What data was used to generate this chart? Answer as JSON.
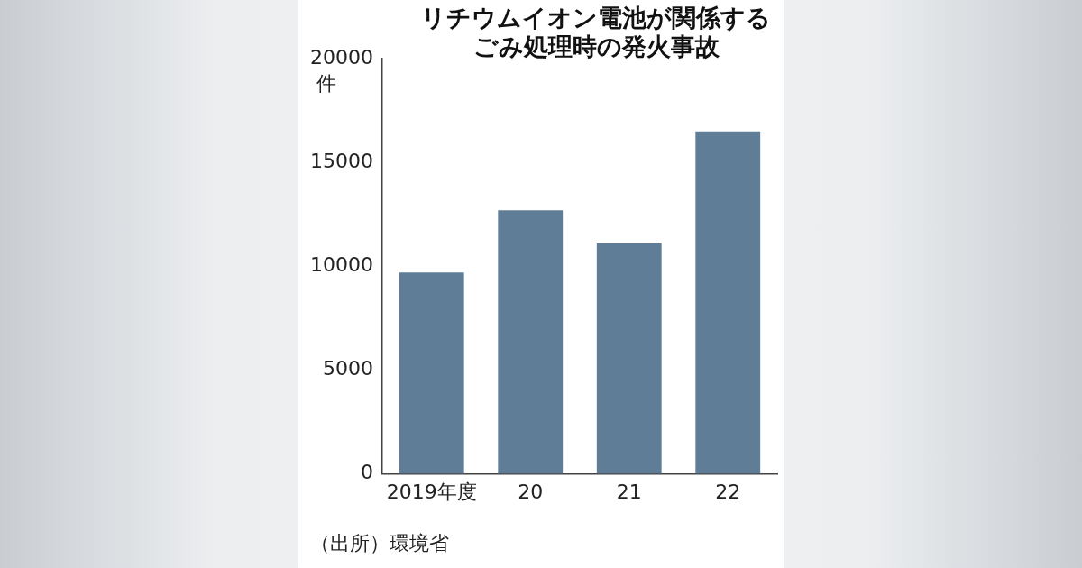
{
  "chart_data": {
    "type": "bar",
    "title": "リチウムイオン電池が関係するごみ処理時の発火事故",
    "ylabel": "件",
    "categories": [
      "2019年度",
      "20",
      "21",
      "22"
    ],
    "values": [
      9700,
      12700,
      11100,
      16500
    ],
    "color": "#5f7d96",
    "ylim": [
      0,
      20000
    ],
    "yticks": [
      0,
      5000,
      10000,
      15000,
      20000
    ],
    "grid": false,
    "legend": false,
    "annotations": [
      "（出所）環境省"
    ]
  }
}
